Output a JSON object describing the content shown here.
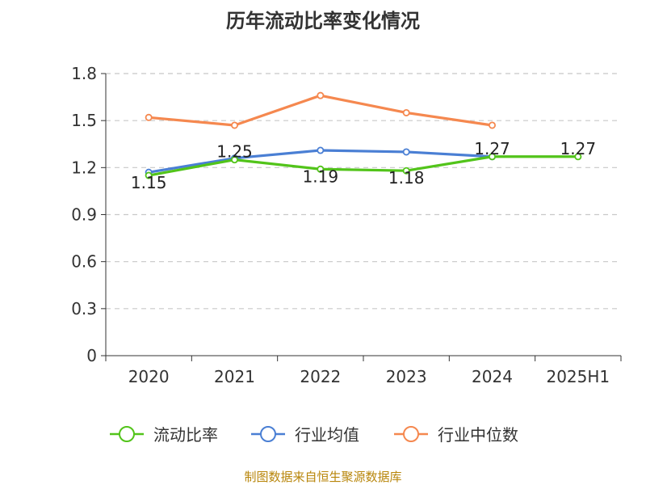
{
  "chart_data": {
    "type": "line",
    "title": "历年流动比率变化情况",
    "categories": [
      "2020",
      "2021",
      "2022",
      "2023",
      "2024",
      "2025H1"
    ],
    "ylim": [
      0,
      1.8
    ],
    "yticks": [
      "0",
      "0.3",
      "0.6",
      "0.9",
      "1.2",
      "1.5",
      "1.8"
    ],
    "grid": true,
    "legend_position": "bottom",
    "series": [
      {
        "name": "流动比率",
        "color": "#52c41a",
        "values": [
          1.15,
          1.25,
          1.19,
          1.18,
          1.27,
          1.27
        ],
        "labels": [
          "1.15",
          "1.25",
          "1.19",
          "1.18",
          "1.27",
          "1.27"
        ]
      },
      {
        "name": "行业均值",
        "color": "#4a7fd4",
        "values": [
          1.17,
          1.26,
          1.31,
          1.3,
          1.27,
          null
        ]
      },
      {
        "name": "行业中位数",
        "color": "#f5884f",
        "values": [
          1.52,
          1.47,
          1.66,
          1.55,
          1.47,
          null
        ]
      }
    ],
    "source": "制图数据来自恒生聚源数据库"
  }
}
